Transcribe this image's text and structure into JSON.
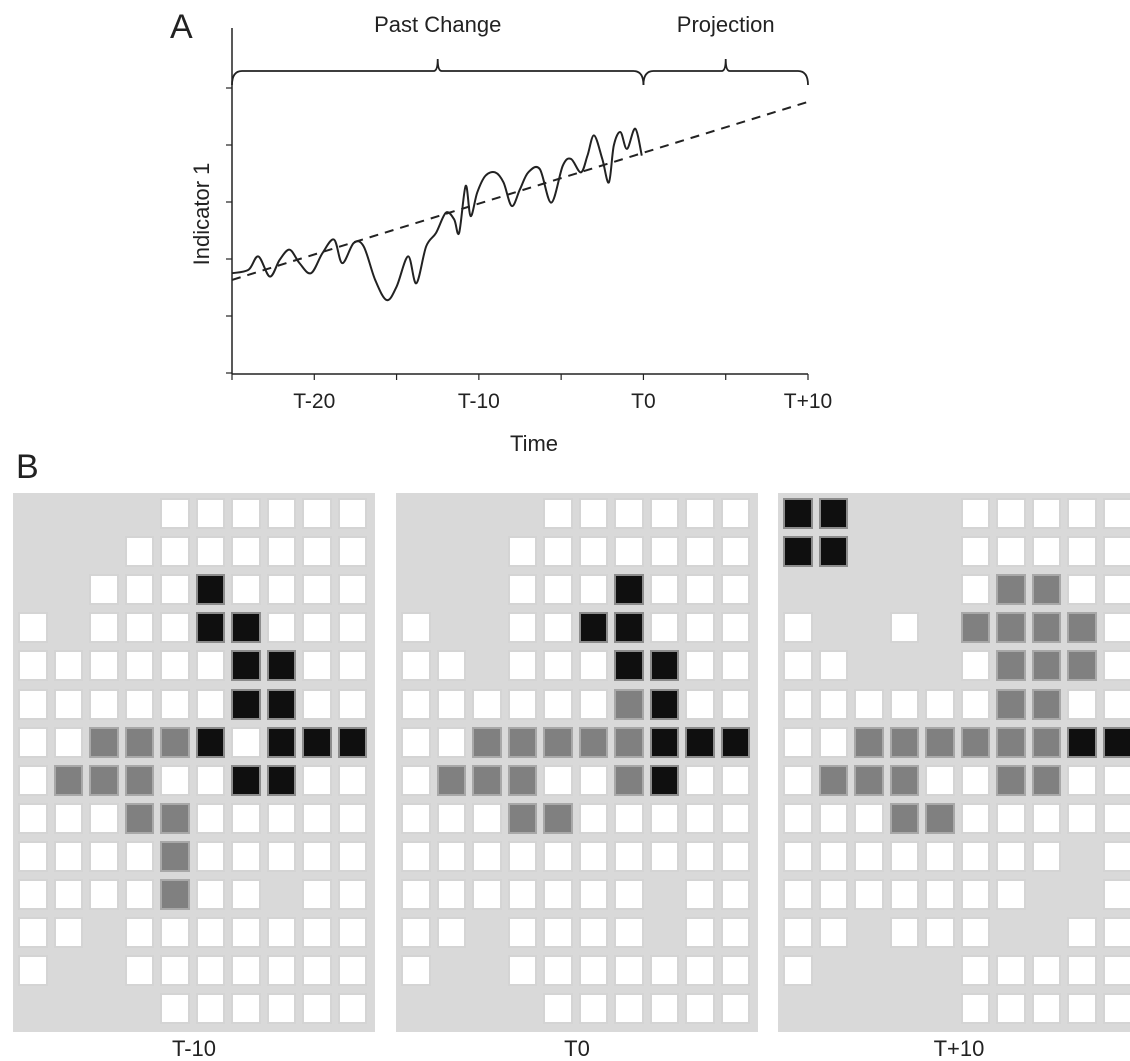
{
  "panels": {
    "a_label": "A",
    "b_label": "B"
  },
  "chart_data": {
    "type": "line",
    "ylabel": "Indicator 1",
    "xlabel": "Time",
    "xlim": [
      -25,
      10
    ],
    "ylim": [
      0,
      10
    ],
    "x_ticks": [
      -20,
      -10,
      0,
      10
    ],
    "x_tick_labels": [
      "T-20",
      "T-10",
      "T0",
      "T+10"
    ],
    "brackets": [
      {
        "label": "Past Change",
        "from": -25,
        "to": 0
      },
      {
        "label": "Projection",
        "from": 0,
        "to": 10
      }
    ],
    "series": [
      {
        "style": "solid",
        "x": [
          -25,
          -24,
          -23.4,
          -22.7,
          -22.1,
          -21.5,
          -20.9,
          -20.2,
          -19.5,
          -18.8,
          -18.3,
          -17.6,
          -17.0,
          -16.3,
          -15.6,
          -15.0,
          -14.3,
          -13.8,
          -13.2,
          -12.6,
          -12.0,
          -11.5,
          -11.2,
          -10.8,
          -10.5,
          -10.1,
          -9.6,
          -9.0,
          -8.5,
          -8.0,
          -7.5,
          -7.0,
          -6.3,
          -5.6,
          -4.9,
          -4.4,
          -3.8,
          -3.4,
          -3.0,
          -2.5,
          -2.1,
          -1.8,
          -1.4,
          -1.0,
          -0.5,
          -0.1
        ],
        "values": [
          3.0,
          3.1,
          3.5,
          2.9,
          3.4,
          3.7,
          3.3,
          3.0,
          3.6,
          4.0,
          3.3,
          3.9,
          3.8,
          2.8,
          2.2,
          2.6,
          3.5,
          2.7,
          3.8,
          4.2,
          4.8,
          4.6,
          4.2,
          5.6,
          4.7,
          5.4,
          5.9,
          6.0,
          5.7,
          5.0,
          5.5,
          6.0,
          6.1,
          5.1,
          6.2,
          6.4,
          6.0,
          6.5,
          7.1,
          6.4,
          5.7,
          6.8,
          7.2,
          6.7,
          7.3,
          6.5
        ]
      },
      {
        "style": "dashed",
        "x": [
          -25,
          10
        ],
        "values": [
          2.8,
          8.1
        ]
      }
    ]
  },
  "grids": [
    {
      "label": "T-10",
      "rows": [
        "LLLLWWWWWW",
        "LLLWWWWWWW",
        "LLWWWDWWWW",
        "WLWWWDDWWW",
        "WWWWWWDDWW",
        "WWWWWWDDWW",
        "WWGGGDWDDD",
        "WGGGWWDDWW",
        "WWWGGWWWWW",
        "WWWWGWWWWW",
        "WWWWGWWLWW",
        "WWLWWWWWWW",
        "WLLWWWWWWW",
        "LLLLWWWWWW"
      ]
    },
    {
      "label": "T0",
      "rows": [
        "LLLLWWWWWW",
        "LLLWWWWWWW",
        "LLLWWWDWWW",
        "WLLWWDDWWW",
        "WWLWWWDDWW",
        "WWWWWWGDWW",
        "WWGGGGGDDD",
        "WGGGWWGDWW",
        "WWWGGWWWWW",
        "WWWWWWWWWW",
        "WWWWWWWLWW",
        "WWLWWWWLWW",
        "WLLWWWWWWW",
        "LLLLWWWWWW"
      ]
    },
    {
      "label": "T+10",
      "rows": [
        "DDLLLWWWWW",
        "DDLLLWWWWW",
        "LLLLLWGGWW",
        "WLLWLGGGGW",
        "WWLLLWGGGW",
        "WWWWWWGGWW",
        "WWGGGGGGDD",
        "WGGGWWGGWW",
        "WWWGGWWWWW",
        "WWWWWWWWLW",
        "WWWWWWWLLW",
        "WWLWWWLLWW",
        "WLLLLWWWWW",
        "LLLLLWWWWW"
      ]
    }
  ],
  "colors": {
    "dark_cell": "#0f0f0f",
    "gray_cell": "#808080",
    "light_cell": "#d9d9d9",
    "white_cell": "#ffffff"
  }
}
